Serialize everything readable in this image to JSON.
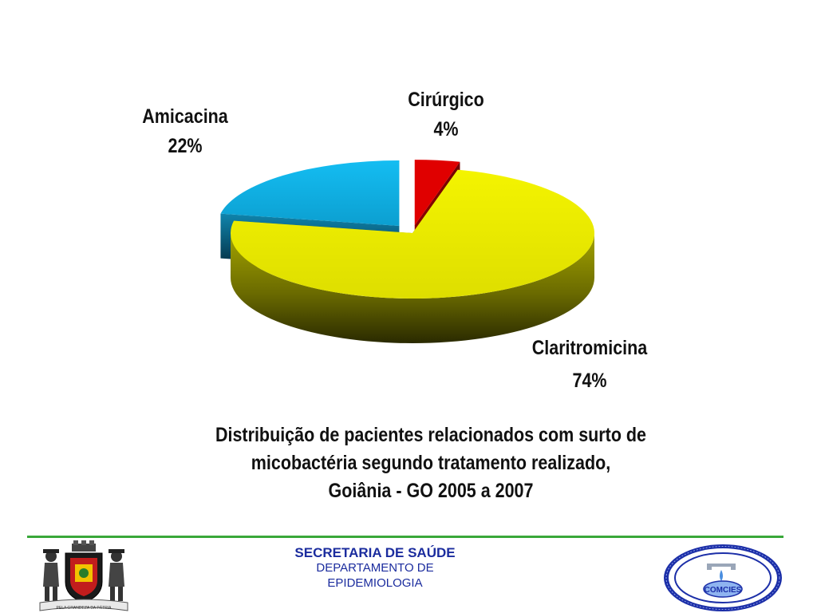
{
  "chart_data": {
    "type": "pie",
    "slices": [
      {
        "label": "Cirúrgico",
        "value": 4,
        "value_text": "4%",
        "color": "#d40000"
      },
      {
        "label": "Claritromicina",
        "value": 74,
        "value_text": "74%",
        "color": "#e6e600"
      },
      {
        "label": "Amicacina",
        "value": 22,
        "value_text": "22%",
        "color": "#12aee0"
      }
    ],
    "three_d": true,
    "exploded": true,
    "title_lines": [
      "Distribuição de pacientes relacionados com surto de",
      "micobactéria segundo  tratamento realizado,",
      "Goiânia - GO 2005 a 2007"
    ]
  },
  "footer": {
    "secretaria": "SECRETARIA DE SAÚDE",
    "dept_line1": "DEPARTAMENTO DE",
    "dept_line2": "EPIDEMIOLOGIA",
    "accent_color": "#39a83a",
    "text_color": "#1b2c9e"
  },
  "logos": {
    "left_motto": "PELA GRANDEZA DA PÁTRIA",
    "right_name": "COMCIES",
    "left_icon": "municipal-coat-of-arms",
    "right_icon": "infection-control-committee-seal"
  }
}
